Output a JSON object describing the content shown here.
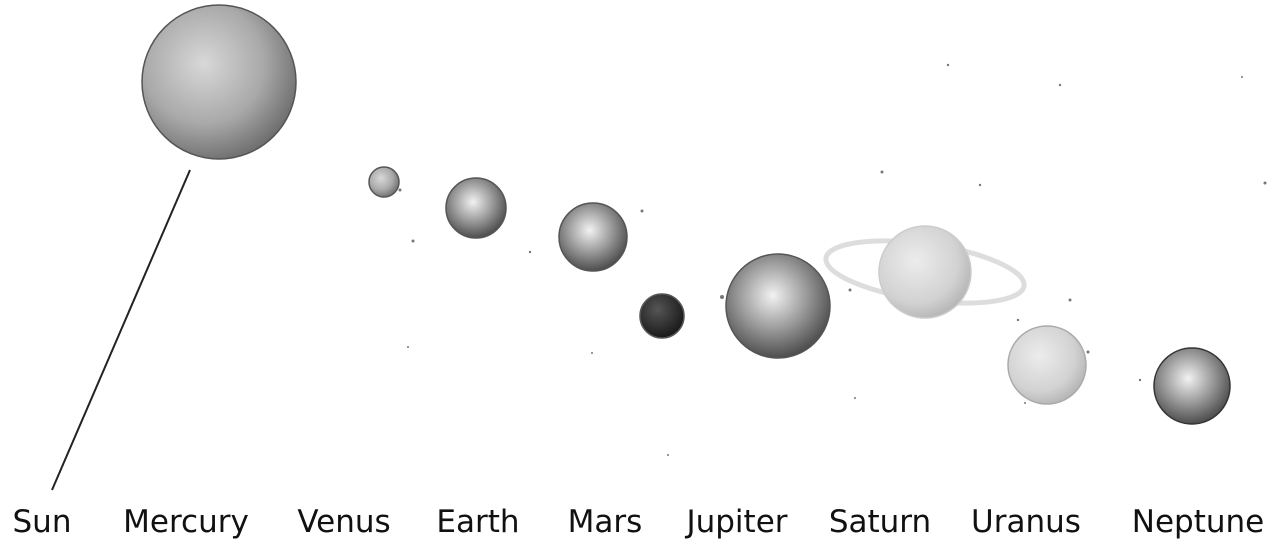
{
  "labels": [
    "Sun",
    "Mercury",
    "Venus",
    "Earth",
    "Mars",
    "Jupiter",
    "Saturn",
    "Uranus",
    "Neptune"
  ]
}
